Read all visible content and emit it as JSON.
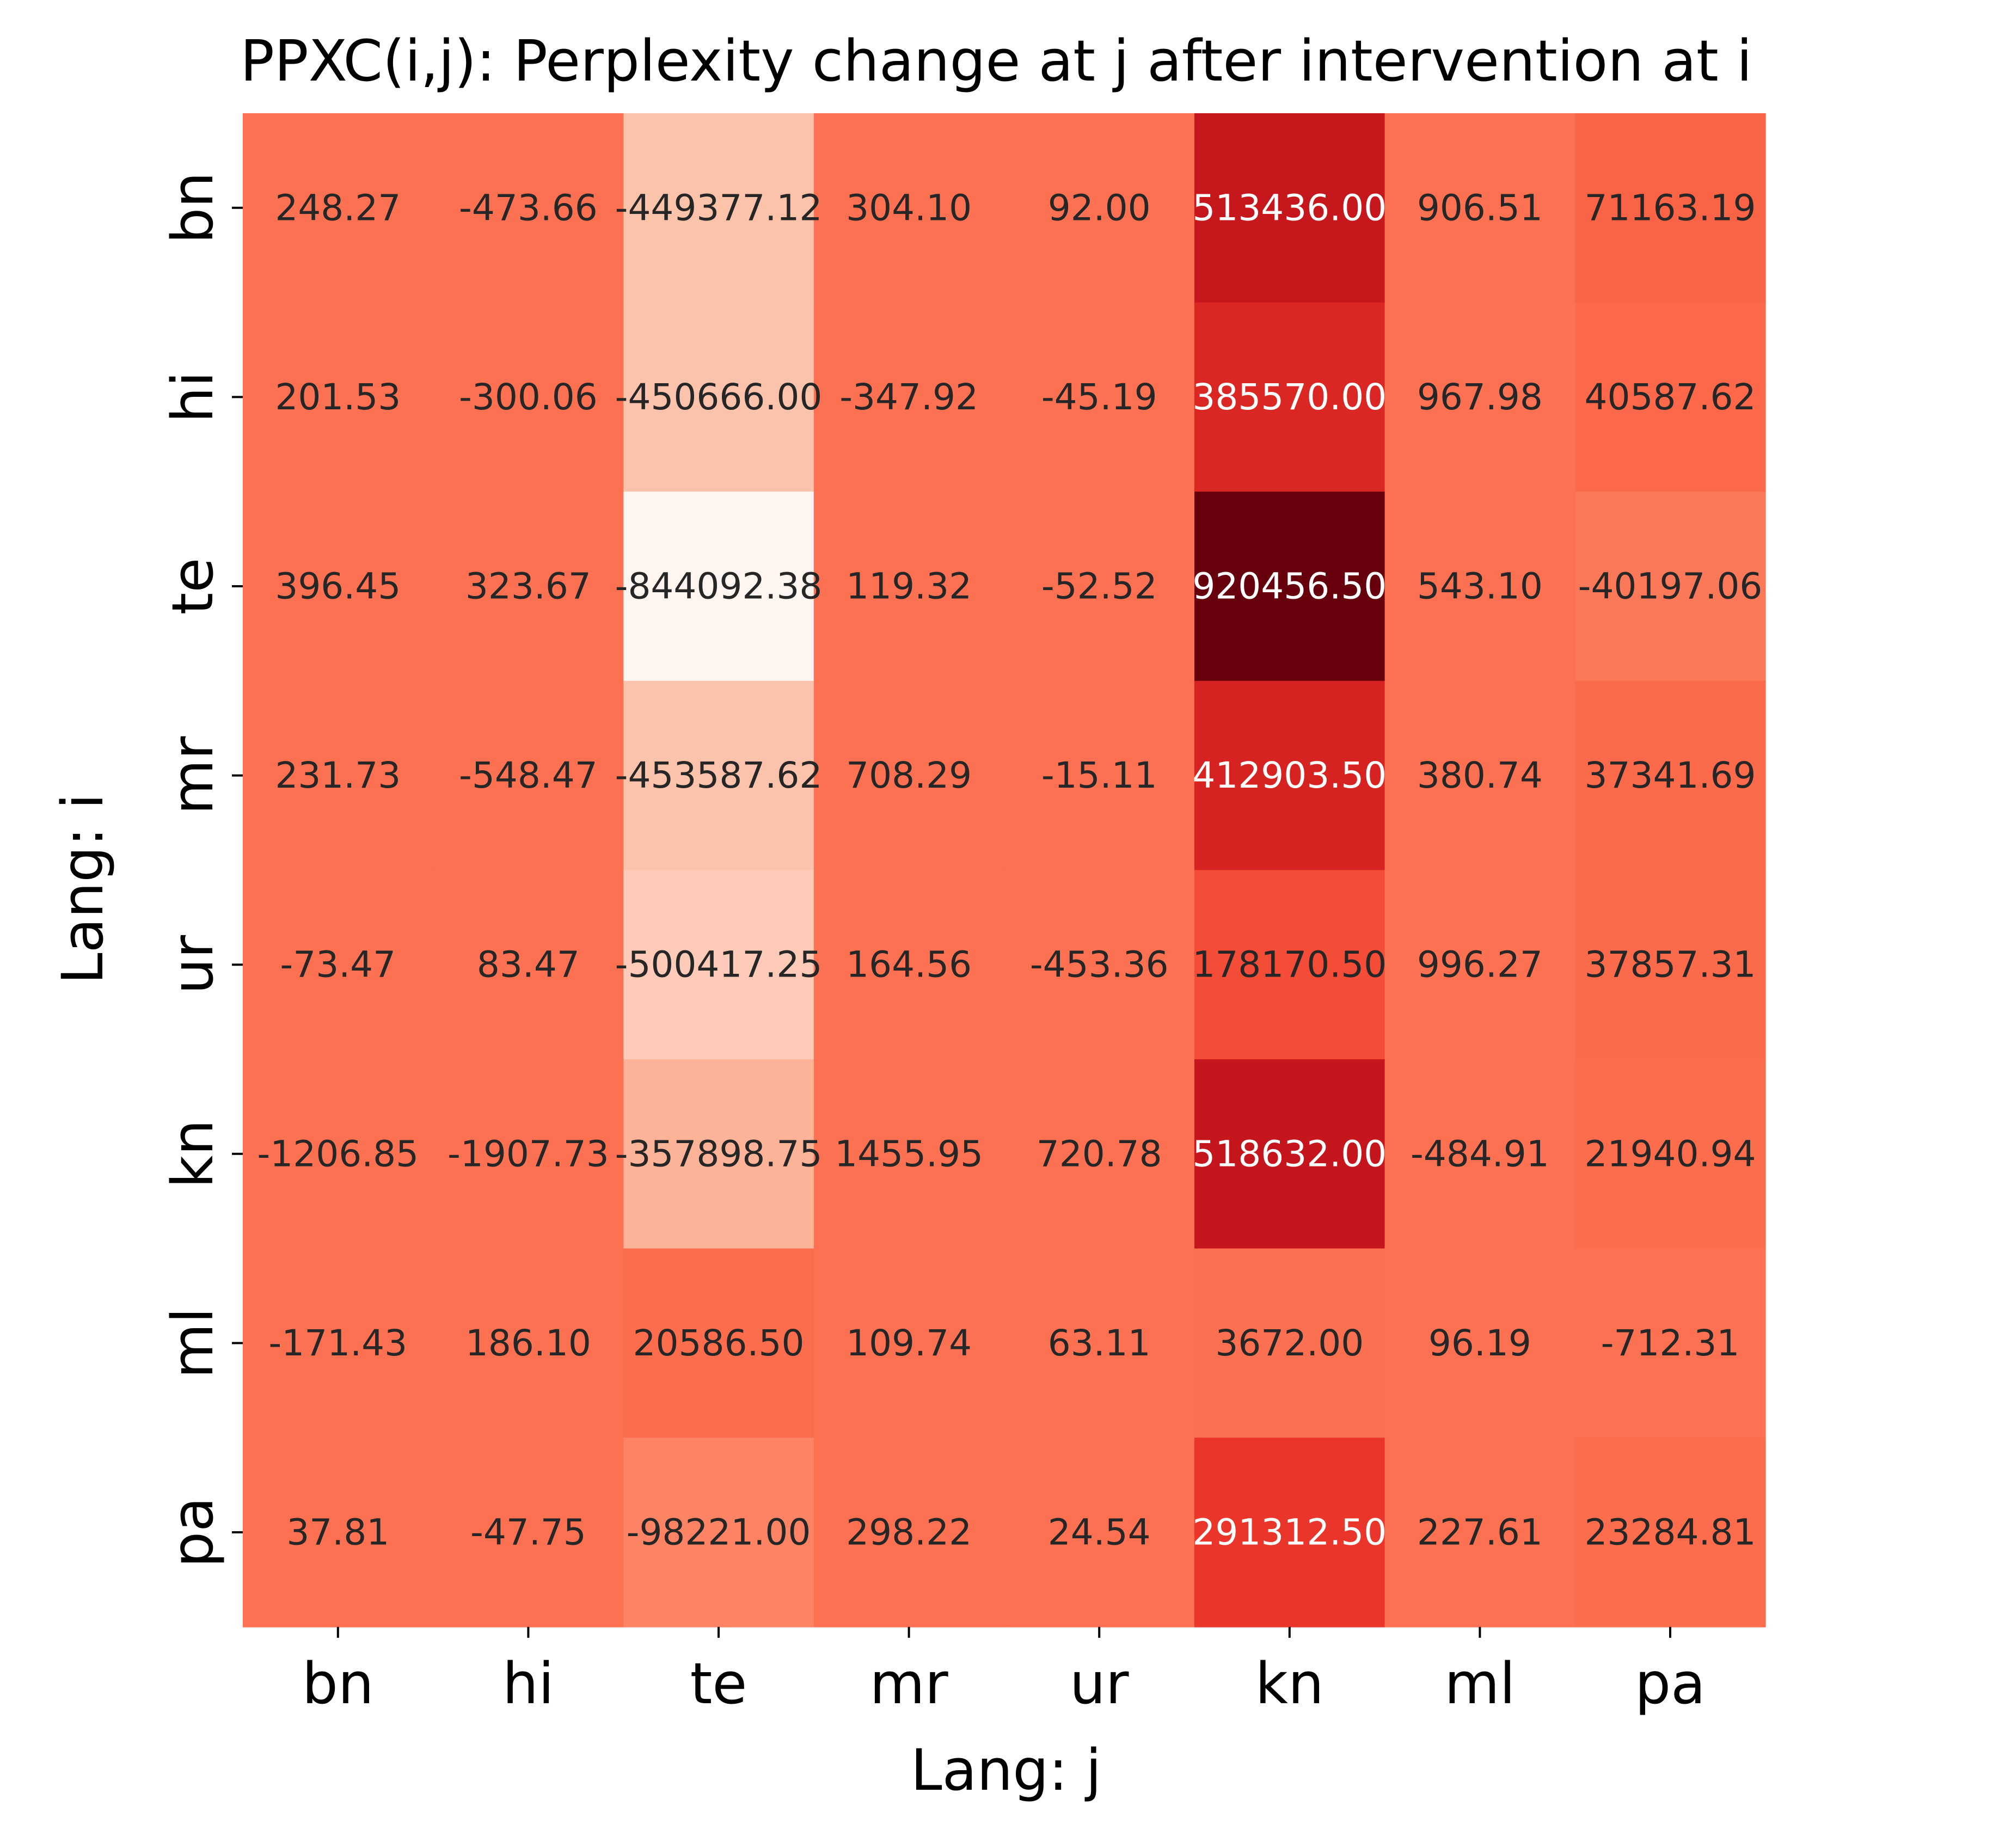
{
  "chart_data": {
    "type": "heatmap",
    "title": "PPXC(i,j): Perplexity change at j after intervention at i",
    "xlabel": "Lang: j",
    "ylabel": "Lang: i",
    "x_categories": [
      "bn",
      "hi",
      "te",
      "mr",
      "ur",
      "kn",
      "ml",
      "pa"
    ],
    "y_categories": [
      "bn",
      "hi",
      "te",
      "mr",
      "ur",
      "kn",
      "ml",
      "pa"
    ],
    "values": [
      [
        248.27,
        -473.66,
        -449377.12,
        304.1,
        92.0,
        513436.0,
        906.51,
        71163.19
      ],
      [
        201.53,
        -300.06,
        -450666.0,
        -347.92,
        -45.19,
        385570.0,
        967.98,
        40587.62
      ],
      [
        396.45,
        323.67,
        -844092.38,
        119.32,
        -52.52,
        920456.5,
        543.1,
        -40197.06
      ],
      [
        231.73,
        -548.47,
        -453587.62,
        708.29,
        -15.11,
        412903.5,
        380.74,
        37341.69
      ],
      [
        -73.47,
        83.47,
        -500417.25,
        164.56,
        -453.36,
        178170.5,
        996.27,
        37857.31
      ],
      [
        -1206.85,
        -1907.73,
        -357898.75,
        1455.95,
        720.78,
        518632.0,
        -484.91,
        21940.94
      ],
      [
        -171.43,
        186.1,
        20586.5,
        109.74,
        63.11,
        3672.0,
        96.19,
        -712.31
      ],
      [
        37.81,
        -47.75,
        -98221.0,
        298.22,
        24.54,
        291312.5,
        227.61,
        23284.81
      ]
    ],
    "labels": [
      [
        "248.27",
        "-473.66",
        "-449377.12",
        "304.10",
        "92.00",
        "513436.00",
        "906.51",
        "71163.19"
      ],
      [
        "201.53",
        "-300.06",
        "-450666.00",
        "-347.92",
        "-45.19",
        "385570.00",
        "967.98",
        "40587.62"
      ],
      [
        "396.45",
        "323.67",
        "-844092.38",
        "119.32",
        "-52.52",
        "920456.50",
        "543.10",
        "-40197.06"
      ],
      [
        "231.73",
        "-548.47",
        "-453587.62",
        "708.29",
        "-15.11",
        "412903.50",
        "380.74",
        "37341.69"
      ],
      [
        "-73.47",
        "83.47",
        "-500417.25",
        "164.56",
        "-453.36",
        "178170.50",
        "996.27",
        "37857.31"
      ],
      [
        "-1206.85",
        "-1907.73",
        "-357898.75",
        "1455.95",
        "720.78",
        "518632.00",
        "-484.91",
        "21940.94"
      ],
      [
        "-171.43",
        "186.10",
        "20586.50",
        "109.74",
        "63.11",
        "3672.00",
        "96.19",
        "-712.31"
      ],
      [
        "37.81",
        "-47.75",
        "-98221.00",
        "298.22",
        "24.54",
        "291312.50",
        "227.61",
        "23284.81"
      ]
    ],
    "colormap": "Reds",
    "vmin": -844092.38,
    "vmax": 920456.5,
    "colorbar": false,
    "grid": false
  }
}
